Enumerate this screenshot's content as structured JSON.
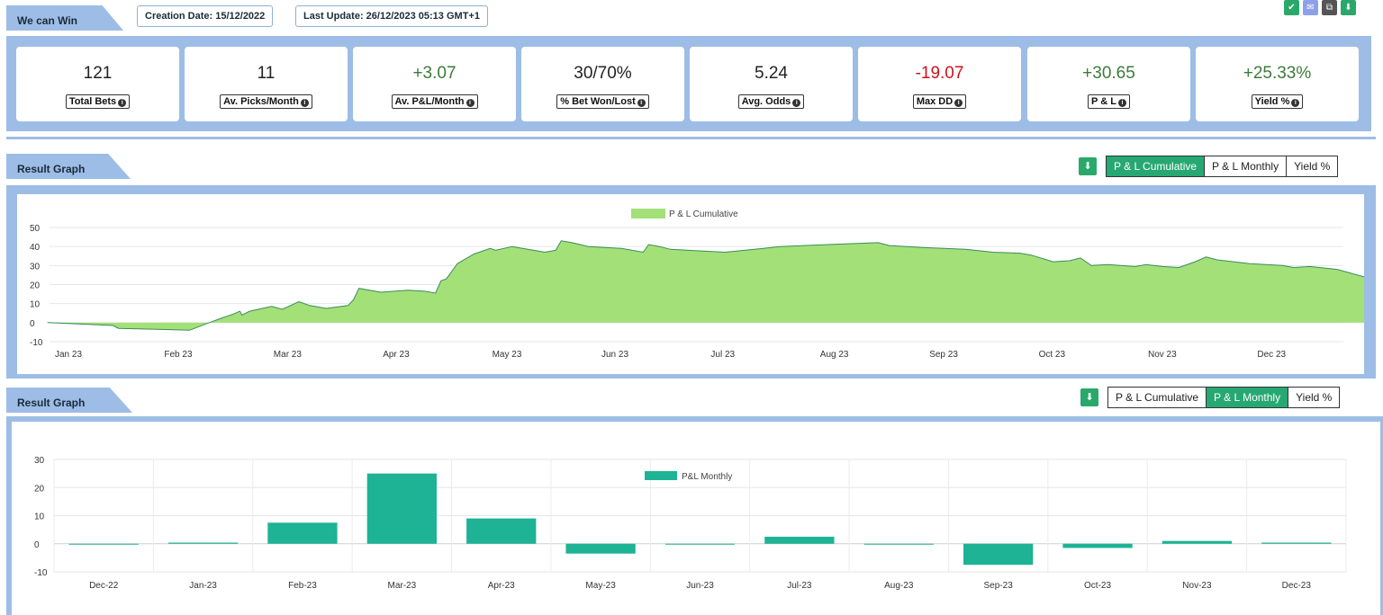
{
  "header": {
    "tab_label": "We can Win",
    "creation_date": "Creation Date: 15/12/2022",
    "last_update": "Last Update: 26/12/2023 05:13 GMT+1",
    "icons": [
      {
        "name": "check-icon",
        "glyph": "✔",
        "color": "#2aa86b"
      },
      {
        "name": "email-icon",
        "glyph": "✉",
        "color": "#8ea0e8"
      },
      {
        "name": "copy-icon",
        "glyph": "⧉",
        "color": "#555555"
      },
      {
        "name": "download-icon",
        "glyph": "⬇",
        "color": "#2aa86b"
      }
    ]
  },
  "stats": [
    {
      "value": "121",
      "label": "Total Bets",
      "tone": "neutral"
    },
    {
      "value": "11",
      "label": "Av. Picks/Month",
      "tone": "neutral"
    },
    {
      "value": "+3.07",
      "label": "Av. P&L/Month",
      "tone": "pos"
    },
    {
      "value": "30/70%",
      "label": "% Bet Won/Lost",
      "tone": "neutral"
    },
    {
      "value": "5.24",
      "label": "Avg. Odds",
      "tone": "neutral"
    },
    {
      "value": "-19.07",
      "label": "Max DD",
      "tone": "neg"
    },
    {
      "value": "+30.65",
      "label": "P & L",
      "tone": "pos"
    },
    {
      "value": "+25.33%",
      "label": "Yield %",
      "tone": "pos"
    }
  ],
  "graph1": {
    "section_label": "Result Graph",
    "buttons": [
      "P & L Cumulative",
      "P & L Monthly",
      "Yield %"
    ],
    "active": 0
  },
  "graph2": {
    "section_label": "Result Graph",
    "buttons": [
      "P & L Cumulative",
      "P & L Monthly",
      "Yield %"
    ],
    "active": 1
  },
  "colors": {
    "area_fill": "#a3e078",
    "area_line": "#3a8c5c",
    "bar_fill": "#1db394",
    "band": "#9dbde6"
  },
  "chart_data": [
    {
      "type": "area",
      "legend": "P & L Cumulative",
      "legend_position": "top-center",
      "x_ticks": [
        "Jan 23",
        "Feb 23",
        "Mar 23",
        "Apr 23",
        "May 23",
        "Jun 23",
        "Jul 23",
        "Aug 23",
        "Sep 23",
        "Oct 23",
        "Nov 23",
        "Dec 23"
      ],
      "y_ticks": [
        "-10",
        "0",
        "10",
        "20",
        "30",
        "40",
        "50"
      ],
      "ylim": [
        -10,
        50
      ],
      "x_range_months": [
        -0.2,
        12
      ],
      "points": [
        [
          -0.2,
          0
        ],
        [
          0.4,
          -1.5
        ],
        [
          0.45,
          -3
        ],
        [
          0.8,
          -3.5
        ],
        [
          1.1,
          -4
        ],
        [
          1.28,
          0
        ],
        [
          1.4,
          2.5
        ],
        [
          1.5,
          4.5
        ],
        [
          1.56,
          6
        ],
        [
          1.58,
          4
        ],
        [
          1.65,
          6
        ],
        [
          1.85,
          8.5
        ],
        [
          1.95,
          7
        ],
        [
          2.1,
          11
        ],
        [
          2.2,
          9
        ],
        [
          2.35,
          7.5
        ],
        [
          2.55,
          9
        ],
        [
          2.6,
          12
        ],
        [
          2.65,
          18
        ],
        [
          2.85,
          16
        ],
        [
          3.1,
          17
        ],
        [
          3.25,
          16.5
        ],
        [
          3.35,
          15.5
        ],
        [
          3.4,
          22
        ],
        [
          3.45,
          23
        ],
        [
          3.55,
          31
        ],
        [
          3.7,
          36
        ],
        [
          3.85,
          39
        ],
        [
          3.9,
          38
        ],
        [
          4.05,
          40
        ],
        [
          4.25,
          38
        ],
        [
          4.35,
          37
        ],
        [
          4.45,
          38
        ],
        [
          4.5,
          43
        ],
        [
          4.6,
          42
        ],
        [
          4.75,
          40
        ],
        [
          5.05,
          39
        ],
        [
          5.25,
          37
        ],
        [
          5.3,
          41
        ],
        [
          5.4,
          40
        ],
        [
          5.5,
          38.5
        ],
        [
          6.0,
          37
        ],
        [
          6.35,
          39
        ],
        [
          6.5,
          40
        ],
        [
          7.15,
          41.5
        ],
        [
          7.4,
          42
        ],
        [
          7.5,
          40.5
        ],
        [
          7.8,
          39.5
        ],
        [
          8.2,
          38.5
        ],
        [
          8.45,
          37
        ],
        [
          8.7,
          36.5
        ],
        [
          8.8,
          35.5
        ],
        [
          9.0,
          32
        ],
        [
          9.15,
          32.5
        ],
        [
          9.25,
          34
        ],
        [
          9.35,
          30
        ],
        [
          9.5,
          30.5
        ],
        [
          9.75,
          29.5
        ],
        [
          9.85,
          30.5
        ],
        [
          10.0,
          29.5
        ],
        [
          10.15,
          29
        ],
        [
          10.3,
          32
        ],
        [
          10.4,
          34.5
        ],
        [
          10.5,
          33
        ],
        [
          10.8,
          31
        ],
        [
          11.1,
          30
        ],
        [
          11.2,
          29
        ],
        [
          11.35,
          29.5
        ],
        [
          11.6,
          28
        ],
        [
          11.85,
          24
        ],
        [
          11.95,
          27.5
        ],
        [
          12.05,
          29
        ],
        [
          12.15,
          31
        ],
        [
          12.25,
          30.5
        ]
      ]
    },
    {
      "type": "bar",
      "legend": "P&L Monthly",
      "legend_position": "top-center",
      "categories": [
        "Dec-22",
        "Jan-23",
        "Feb-23",
        "Mar-23",
        "Apr-23",
        "May-23",
        "Jun-23",
        "Jul-23",
        "Aug-23",
        "Sep-23",
        "Oct-23",
        "Nov-23",
        "Dec-23"
      ],
      "values": [
        -0.2,
        0.4,
        7.5,
        25,
        9,
        -3.5,
        -0.3,
        2.5,
        -0.2,
        -7.5,
        -1.5,
        1,
        0.4
      ],
      "y_ticks": [
        "30",
        "20",
        "10",
        "0",
        "-10"
      ],
      "ylim": [
        -10,
        30
      ]
    }
  ]
}
